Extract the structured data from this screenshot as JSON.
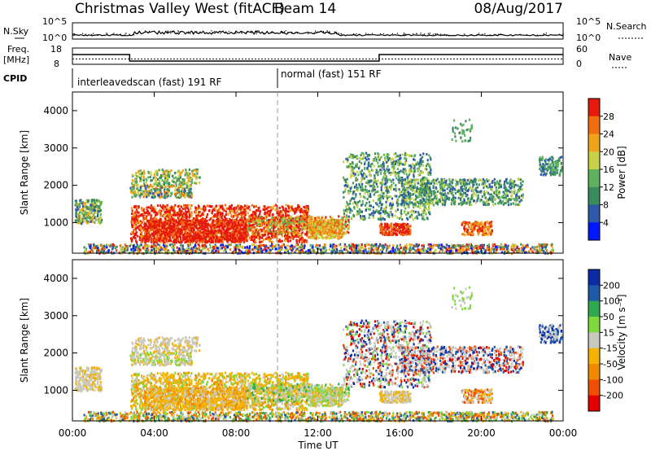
{
  "header": {
    "title": "Christmas Valley West (fitACF)",
    "beam": "Beam 14",
    "date": "08/Aug/2017"
  },
  "top_panels": {
    "nsky_label": "N.Sky",
    "nsky_ticks": [
      "10^5",
      "10^0"
    ],
    "nsearch_label": "N.Search",
    "freq_label": "Freq.",
    "freq_unit": "[MHz]",
    "freq_ticks": [
      "18",
      "8"
    ],
    "nave_ticks": [
      "60",
      "0"
    ],
    "nave_label": "Nave",
    "cpid_label": "CPID",
    "cpid_modes": [
      {
        "label": "interleavedscan (fast) 191 RF",
        "start_hour": 0,
        "end_hour": 10
      },
      {
        "label": "normal (fast) 151 RF",
        "start_hour": 10,
        "end_hour": 24
      }
    ]
  },
  "time_axis": {
    "label": "Time UT",
    "ticks": [
      "00:00",
      "04:00",
      "08:00",
      "12:00",
      "16:00",
      "20:00",
      "00:00"
    ]
  },
  "colors": {
    "power": [
      "#0018ff",
      "#2d59a8",
      "#3a8c5c",
      "#5fb25c",
      "#c8d246",
      "#f2a31c",
      "#f26d0c",
      "#e31a0c"
    ],
    "velocity": [
      "#e40000",
      "#f04e00",
      "#f28a00",
      "#f2b400",
      "#c8c8c0",
      "#7fd93a",
      "#2fa84e",
      "#1f5aa6",
      "#0a2aa8"
    ]
  },
  "chart_data": [
    {
      "type": "line",
      "name": "noise-and-frequency",
      "x_range": [
        0,
        24
      ],
      "freq_mhz": [
        {
          "start_hour": 0,
          "end_hour": 2.8,
          "value": 14
        },
        {
          "start_hour": 2.8,
          "end_hour": 15.0,
          "value": 10
        },
        {
          "start_hour": 15.0,
          "end_hour": 24,
          "value": 14
        }
      ],
      "nave": 20
    },
    {
      "type": "heatmap",
      "name": "power",
      "title": "",
      "xlabel": "Time UT",
      "ylabel": "Slant Range [km]",
      "x_range": [
        0,
        24
      ],
      "y_range": [
        180,
        4500
      ],
      "y_ticks": [
        1000,
        2000,
        3000,
        4000
      ],
      "colorbar": {
        "label": "Power [dB]",
        "ticks": [
          "28",
          "24",
          "20",
          "16",
          "12",
          "8",
          "4"
        ]
      }
    },
    {
      "type": "heatmap",
      "name": "velocity",
      "title": "",
      "xlabel": "Time UT",
      "ylabel": "Slant Range [km]",
      "x_range": [
        0,
        24
      ],
      "y_range": [
        180,
        4500
      ],
      "y_ticks": [
        1000,
        2000,
        3000,
        4000
      ],
      "colorbar": {
        "label": "Velocity [m s⁻¹]",
        "ticks": [
          "200",
          "100",
          "50",
          "15",
          "-15",
          "-50",
          "-100",
          "-200"
        ]
      }
    }
  ]
}
